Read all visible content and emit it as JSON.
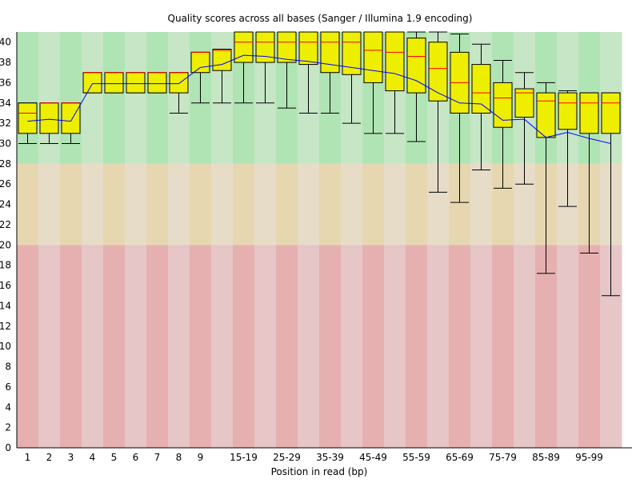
{
  "chart_data": {
    "type": "boxplot",
    "title": "Quality scores across all bases (Sanger / Illumina 1.9 encoding)",
    "xlabel": "Position in read (bp)",
    "ylabel": "",
    "ylim": [
      0,
      41
    ],
    "y_ticks": [
      0,
      2,
      4,
      6,
      8,
      10,
      12,
      14,
      16,
      18,
      20,
      22,
      24,
      26,
      28,
      30,
      32,
      34,
      36,
      38,
      40
    ],
    "x_tick_labels": [
      "1",
      "2",
      "3",
      "4",
      "5",
      "6",
      "7",
      "8",
      "9",
      "",
      "15-19",
      "",
      "25-29",
      "",
      "35-39",
      "",
      "45-49",
      "",
      "55-59",
      "",
      "65-69",
      "",
      "75-79",
      "",
      "85-89",
      "",
      "95-99",
      ""
    ],
    "grid": false,
    "background_bands": [
      {
        "from": 28,
        "to": 41,
        "colors": [
          "#b0e4b4",
          "#c6e6c6"
        ]
      },
      {
        "from": 20,
        "to": 28,
        "colors": [
          "#e6d7b0",
          "#e6dcc8"
        ]
      },
      {
        "from": 0,
        "to": 20,
        "colors": [
          "#e6b0b0",
          "#e6c6c6"
        ]
      }
    ],
    "colors": {
      "box": "#eeee00",
      "median": "#ff0000",
      "mean": "#0000ff",
      "whisker": "#000000"
    },
    "boxes": [
      {
        "low": 30,
        "q1": 31,
        "median": 33,
        "q3": 34,
        "high": 34,
        "mean": 32.2
      },
      {
        "low": 30,
        "q1": 31,
        "median": 34,
        "q3": 34,
        "high": 34,
        "mean": 32.4
      },
      {
        "low": 30,
        "q1": 31,
        "median": 34,
        "q3": 34,
        "high": 34,
        "mean": 32.2
      },
      {
        "low": 35,
        "q1": 35,
        "median": 37,
        "q3": 37,
        "high": 37,
        "mean": 35.9
      },
      {
        "low": 35,
        "q1": 35,
        "median": 37,
        "q3": 37,
        "high": 37,
        "mean": 35.9
      },
      {
        "low": 35,
        "q1": 35,
        "median": 37,
        "q3": 37,
        "high": 37,
        "mean": 35.9
      },
      {
        "low": 35,
        "q1": 35,
        "median": 37,
        "q3": 37,
        "high": 37,
        "mean": 35.9
      },
      {
        "low": 33,
        "q1": 35,
        "median": 37,
        "q3": 37,
        "high": 37,
        "mean": 35.9
      },
      {
        "low": 34,
        "q1": 37,
        "median": 39,
        "q3": 39,
        "high": 39,
        "mean": 37.5
      },
      {
        "low": 34,
        "q1": 37.2,
        "median": 39.2,
        "q3": 39.3,
        "high": 39.3,
        "mean": 37.8
      },
      {
        "low": 34,
        "q1": 38,
        "median": 40,
        "q3": 41,
        "high": 41,
        "mean": 38.7
      },
      {
        "low": 34,
        "q1": 38,
        "median": 40,
        "q3": 41,
        "high": 41,
        "mean": 38.6
      },
      {
        "low": 33.5,
        "q1": 38,
        "median": 40,
        "q3": 41,
        "high": 41,
        "mean": 38.3
      },
      {
        "low": 33,
        "q1": 37.8,
        "median": 40,
        "q3": 41,
        "high": 41,
        "mean": 38.1
      },
      {
        "low": 33,
        "q1": 37,
        "median": 40,
        "q3": 41,
        "high": 41,
        "mean": 37.8
      },
      {
        "low": 32,
        "q1": 36.8,
        "median": 40,
        "q3": 41,
        "high": 41,
        "mean": 37.5
      },
      {
        "low": 31,
        "q1": 36,
        "median": 39.2,
        "q3": 41,
        "high": 41,
        "mean": 37.2
      },
      {
        "low": 31,
        "q1": 35.2,
        "median": 39,
        "q3": 41,
        "high": 41,
        "mean": 36.9
      },
      {
        "low": 30.2,
        "q1": 35,
        "median": 38.6,
        "q3": 40.4,
        "high": 41,
        "mean": 36.2
      },
      {
        "low": 25.2,
        "q1": 34.2,
        "median": 37.4,
        "q3": 40,
        "high": 41,
        "mean": 35.0
      },
      {
        "low": 24.2,
        "q1": 33,
        "median": 36,
        "q3": 39,
        "high": 40.8,
        "mean": 34.0
      },
      {
        "low": 27.4,
        "q1": 33,
        "median": 35,
        "q3": 37.8,
        "high": 39.8,
        "mean": 33.9
      },
      {
        "low": 25.6,
        "q1": 31.6,
        "median": 34.5,
        "q3": 36,
        "high": 38.2,
        "mean": 32.3
      },
      {
        "low": 26,
        "q1": 32.6,
        "median": 35,
        "q3": 35.4,
        "high": 37,
        "mean": 32.4
      },
      {
        "low": 17.2,
        "q1": 30.6,
        "median": 34.2,
        "q3": 35,
        "high": 36,
        "mean": 30.6
      },
      {
        "low": 23.8,
        "q1": 31.4,
        "median": 34,
        "q3": 35,
        "high": 35.2,
        "mean": 31.1
      },
      {
        "low": 19.2,
        "q1": 31,
        "median": 34,
        "q3": 35,
        "high": 35,
        "mean": 30.5
      },
      {
        "low": 15,
        "q1": 31,
        "median": 34,
        "q3": 35,
        "high": 35,
        "mean": 30.0
      }
    ]
  }
}
